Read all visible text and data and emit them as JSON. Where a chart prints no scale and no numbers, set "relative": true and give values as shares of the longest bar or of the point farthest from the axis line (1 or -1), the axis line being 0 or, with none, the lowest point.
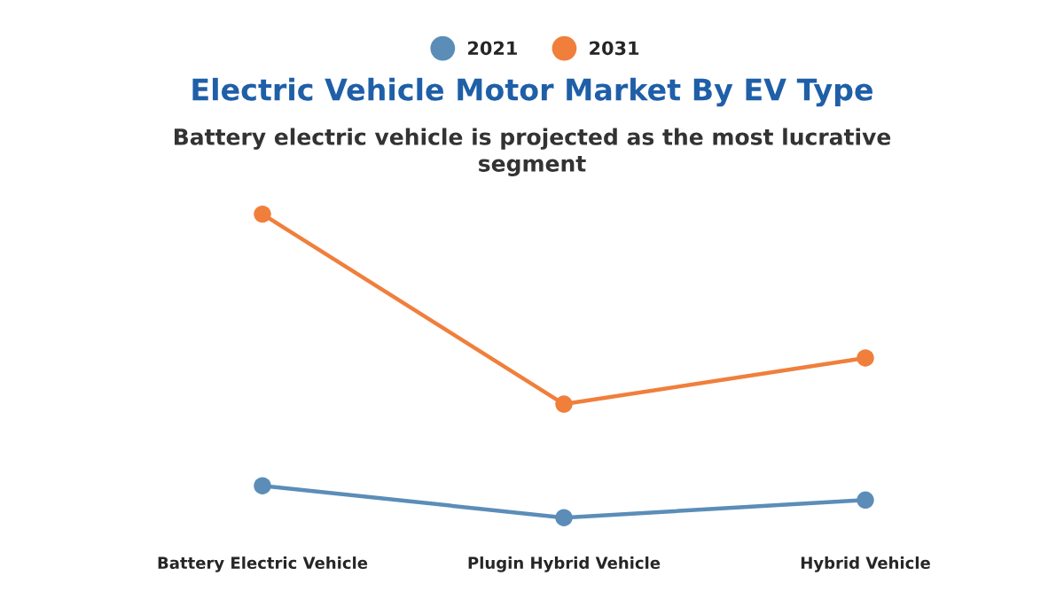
{
  "chart_data": {
    "type": "line",
    "title": "Electric Vehicle Motor Market By EV Type",
    "subtitle": "Battery electric vehicle is projected as the most lucrative\nsegment",
    "categories": [
      "Battery Electric Vehicle",
      "Plugin Hybrid Vehicle",
      "Hybrid Vehicle"
    ],
    "relative": true,
    "marker": "circle",
    "legend": "top",
    "grid": false,
    "series": [
      {
        "name": "2021",
        "color": "#5b8db8",
        "values": [
          0.105,
          0,
          0.058
        ]
      },
      {
        "name": "2031",
        "color": "#f07f3c",
        "values": [
          1,
          0.374,
          0.526
        ]
      }
    ]
  }
}
